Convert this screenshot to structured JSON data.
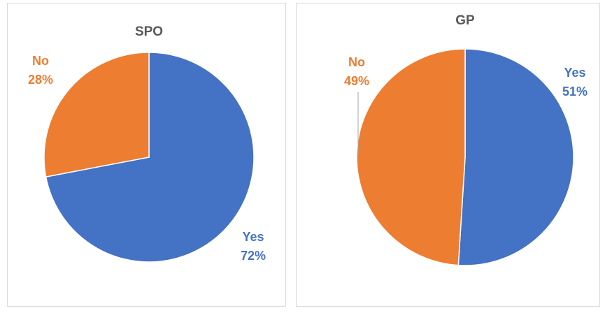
{
  "chart_data": [
    {
      "type": "pie",
      "title": "SPO",
      "categories": [
        "Yes",
        "No"
      ],
      "values": [
        72,
        28
      ],
      "value_labels": [
        "72%",
        "28%"
      ],
      "colors": [
        "#4472c4",
        "#ed7d31"
      ]
    },
    {
      "type": "pie",
      "title": "GP",
      "categories": [
        "Yes",
        "No"
      ],
      "values": [
        51,
        49
      ],
      "value_labels": [
        "51%",
        "49%"
      ],
      "colors": [
        "#4472c4",
        "#ed7d31"
      ]
    }
  ]
}
